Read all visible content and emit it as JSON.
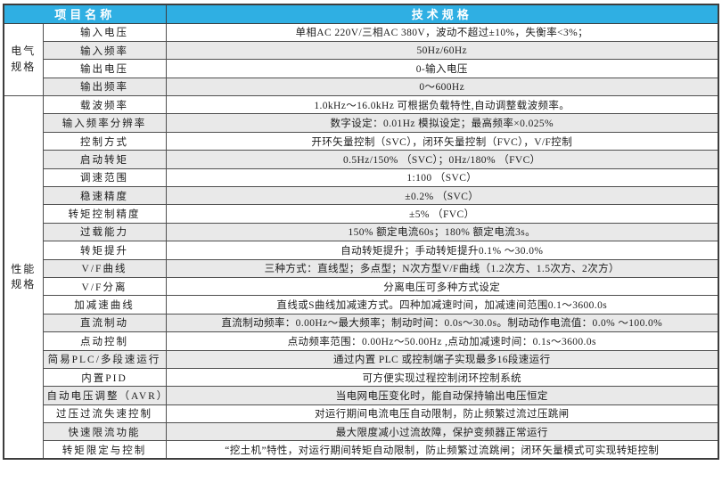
{
  "colors": {
    "header_bg": "#2fafe3",
    "header_text": "#ffffff",
    "shaded_row_bg": "#e9e9e9",
    "border": "#3d3d3d"
  },
  "table": {
    "header": {
      "project": "项目名称",
      "spec": "技术规格"
    },
    "groups": [
      {
        "id": "electrical",
        "lines": [
          "电气",
          "规格"
        ],
        "span": 4
      },
      {
        "id": "performance",
        "lines": [
          "性能",
          "规格"
        ],
        "span": 20
      }
    ],
    "rows": [
      {
        "item": "输入电压",
        "spec": "单相AC 220V/三相AC 380V，波动不超过±10%，失衡率<3%；",
        "shaded": false,
        "group": 0
      },
      {
        "item": "输入频率",
        "spec": "50Hz/60Hz",
        "shaded": true
      },
      {
        "item": "输出电压",
        "spec": "0-输入电压",
        "shaded": false
      },
      {
        "item": "输出频率",
        "spec": "0～600Hz",
        "shaded": true
      },
      {
        "item": "载波频率",
        "spec": "1.0kHz～16.0kHz 可根据负载特性,自动调整载波频率。",
        "shaded": false,
        "group": 1
      },
      {
        "item": "输入频率分辨率",
        "spec": "数字设定：0.01Hz 模拟设定；最高频率×0.025%",
        "shaded": true
      },
      {
        "item": "控制方式",
        "spec": "开环矢量控制（SVC），闭环矢量控制（FVC），V/F控制",
        "shaded": false
      },
      {
        "item": "启动转矩",
        "spec": "0.5Hz/150% （SVC）；0Hz/180% （FVC）",
        "shaded": true
      },
      {
        "item": "调速范围",
        "spec": "1:100 （SVC）",
        "shaded": false
      },
      {
        "item": "稳速精度",
        "spec": "±0.2% （SVC）",
        "shaded": true
      },
      {
        "item": "转矩控制精度",
        "spec": "±5% （FVC）",
        "shaded": false
      },
      {
        "item": "过载能力",
        "spec": "150% 额定电流60s；180% 额定电流3s。",
        "shaded": true
      },
      {
        "item": "转矩提升",
        "spec": "自动转矩提升；手动转矩提升0.1% ～30.0%",
        "shaded": false
      },
      {
        "item": "V/F曲线",
        "spec": "三种方式：直线型；多点型；N次方型V/F曲线（1.2次方、1.5次方、2次方）",
        "shaded": true
      },
      {
        "item": "V/F分离",
        "spec": "分离电压可多种方式设定",
        "shaded": false
      },
      {
        "item": "加减速曲线",
        "spec": "直线或S曲线加减速方式。四种加减速时间，加减速间范围0.1～3600.0s",
        "shaded": false
      },
      {
        "item": "直流制动",
        "spec": "直流制动频率：0.00Hz～最大频率；制动时间：0.0s～30.0s。制动动作电流值：0.0% ～100.0%",
        "shaded": true
      },
      {
        "item": "点动控制",
        "spec": "点动频率范围：0.00Hz～50.00Hz ,点动加减速时间：0.1s～3600.0s",
        "shaded": false
      },
      {
        "item": "简易PLC/多段速运行",
        "spec": "通过内置 PLC 或控制端子实现最多16段速运行",
        "shaded": true
      },
      {
        "item": "内置PID",
        "spec": "可方便实现过程控制闭环控制系统",
        "shaded": false
      },
      {
        "item": "自动电压调整（AVR）",
        "spec": "当电网电压变化时，能自动保持输出电压恒定",
        "shaded": true
      },
      {
        "item": "过压过流失速控制",
        "spec": "对运行期间电流电压自动限制，防止频繁过流过压跳闸",
        "shaded": false
      },
      {
        "item": "快速限流功能",
        "spec": "最大限度减小过流故障，保护变频器正常运行",
        "shaded": true
      },
      {
        "item": "转矩限定与控制",
        "spec": "“挖土机”特性，对运行期间转矩自动限制，防止频繁过流跳闸；闭环矢量模式可实现转矩控制",
        "shaded": false
      }
    ]
  }
}
